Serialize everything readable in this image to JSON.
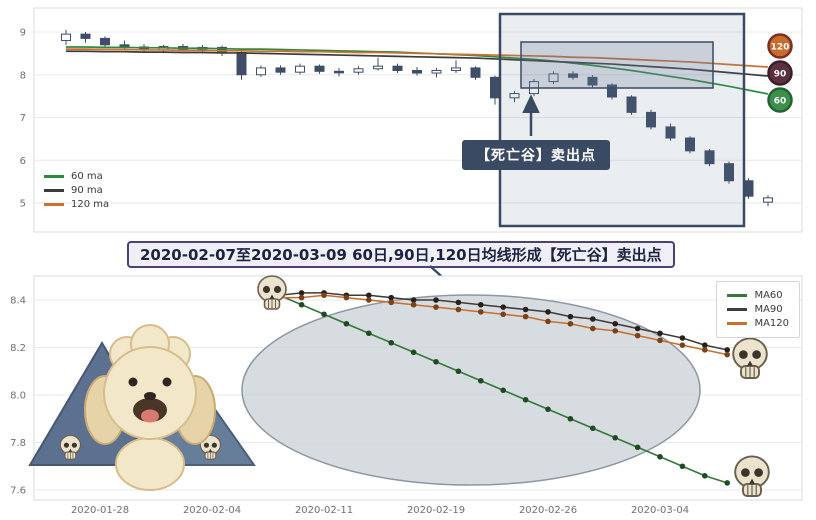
{
  "figure": {
    "bg": "#ffffff",
    "panel_border": "#d7dbe1",
    "grid_color": "#e6e9ed",
    "axis_label_color": "#707070",
    "accent_navy": "#3b4a63",
    "ellipse_fill": "#cdd3da",
    "ellipse_stroke": "#8d97a2"
  },
  "top_panel": {
    "annotation_badge": {
      "text": "【死亡谷】卖出点"
    },
    "ma_badges": [
      {
        "label": "120",
        "bg": "#c96b2c",
        "border": "#7a2f1f"
      },
      {
        "label": "90",
        "bg": "#5d3040",
        "border": "#3a1f2a"
      },
      {
        "label": "60",
        "bg": "#3d8f4c",
        "border": "#236330"
      }
    ]
  },
  "between": {
    "annotation_title": "2020-02-07至2020-03-09 60日,90日,120日均线形成【死亡谷】卖出点"
  },
  "chart_data": [
    {
      "type": "candlestick",
      "panel": "top",
      "ylim": [
        4.6,
        9.4
      ],
      "y_ticks": [
        9,
        8,
        7,
        6,
        5
      ],
      "candle_up_color": "#ffffff",
      "candle_down_color": "#3f4d68",
      "candle_outline": "#3f4d68",
      "dates": [
        "2020-01-21",
        "2020-01-22",
        "2020-01-23",
        "2020-01-24",
        "2020-01-27",
        "2020-01-28",
        "2020-01-29",
        "2020-01-30",
        "2020-01-31",
        "2020-02-03",
        "2020-02-04",
        "2020-02-05",
        "2020-02-06",
        "2020-02-07",
        "2020-02-10",
        "2020-02-11",
        "2020-02-12",
        "2020-02-13",
        "2020-02-14",
        "2020-02-18",
        "2020-02-19",
        "2020-02-20",
        "2020-02-21",
        "2020-02-24",
        "2020-02-25",
        "2020-02-26",
        "2020-02-27",
        "2020-02-28",
        "2020-03-02",
        "2020-03-03",
        "2020-03-04",
        "2020-03-05",
        "2020-03-06",
        "2020-03-09",
        "2020-03-10",
        "2020-03-11",
        "2020-03-12"
      ],
      "open": [
        8.8,
        8.95,
        8.85,
        8.7,
        8.65,
        8.58,
        8.66,
        8.6,
        8.64,
        8.52,
        8.0,
        8.16,
        8.06,
        8.2,
        8.08,
        8.06,
        8.14,
        8.2,
        8.1,
        8.04,
        8.1,
        8.16,
        7.94,
        7.46,
        7.56,
        7.84,
        8.02,
        7.94,
        7.76,
        7.48,
        7.12,
        6.78,
        6.52,
        6.22,
        5.92,
        5.52,
        5.02
      ],
      "high": [
        9.05,
        9.0,
        8.9,
        8.8,
        8.72,
        8.7,
        8.72,
        8.7,
        8.68,
        8.58,
        8.22,
        8.22,
        8.26,
        8.24,
        8.16,
        8.2,
        8.4,
        8.26,
        8.18,
        8.16,
        8.34,
        8.2,
        7.98,
        7.62,
        7.9,
        8.08,
        8.08,
        7.99,
        7.8,
        7.52,
        7.18,
        6.86,
        6.56,
        6.26,
        5.97,
        5.58,
        5.18
      ],
      "low": [
        8.7,
        8.75,
        8.65,
        8.6,
        8.52,
        8.52,
        8.56,
        8.5,
        8.44,
        7.88,
        7.95,
        8.0,
        8.01,
        8.02,
        7.96,
        8.0,
        8.1,
        8.04,
        7.98,
        7.94,
        8.04,
        7.88,
        7.3,
        7.36,
        7.5,
        7.78,
        7.88,
        7.7,
        7.42,
        7.06,
        6.72,
        6.46,
        6.16,
        5.86,
        5.45,
        5.1,
        4.92
      ],
      "close": [
        8.95,
        8.85,
        8.7,
        8.65,
        8.58,
        8.66,
        8.6,
        8.64,
        8.52,
        8.0,
        8.16,
        8.06,
        8.2,
        8.08,
        8.06,
        8.14,
        8.2,
        8.1,
        8.04,
        8.1,
        8.16,
        7.94,
        7.46,
        7.56,
        7.84,
        8.02,
        7.94,
        7.76,
        7.48,
        7.12,
        6.78,
        6.52,
        6.22,
        5.92,
        5.52,
        5.16,
        5.12
      ],
      "series": [
        {
          "name": "60 ma",
          "color": "#2e8b3d",
          "values": [
            8.65,
            8.65,
            8.64,
            8.64,
            8.63,
            8.63,
            8.62,
            8.62,
            8.61,
            8.6,
            8.6,
            8.59,
            8.58,
            8.57,
            8.56,
            8.55,
            8.54,
            8.53,
            8.51,
            8.49,
            8.47,
            8.45,
            8.42,
            8.39,
            8.36,
            8.32,
            8.27,
            8.22,
            8.16,
            8.1,
            8.03,
            7.96,
            7.89,
            7.81,
            7.73,
            7.64,
            7.55
          ]
        },
        {
          "name": "90 ma",
          "color": "#3b3b3b",
          "values": [
            8.55,
            8.55,
            8.54,
            8.54,
            8.53,
            8.53,
            8.52,
            8.52,
            8.51,
            8.51,
            8.5,
            8.49,
            8.48,
            8.47,
            8.46,
            8.45,
            8.44,
            8.43,
            8.42,
            8.41,
            8.4,
            8.39,
            8.37,
            8.35,
            8.33,
            8.31,
            8.29,
            8.27,
            8.25,
            8.22,
            8.19,
            8.16,
            8.13,
            8.09,
            8.05,
            8.01,
            7.97
          ]
        },
        {
          "name": "120 ma",
          "color": "#d0702f",
          "values": [
            8.6,
            8.6,
            8.59,
            8.59,
            8.58,
            8.58,
            8.57,
            8.57,
            8.56,
            8.56,
            8.55,
            8.55,
            8.54,
            8.54,
            8.53,
            8.52,
            8.52,
            8.51,
            8.5,
            8.49,
            8.48,
            8.47,
            8.46,
            8.45,
            8.44,
            8.43,
            8.41,
            8.4,
            8.38,
            8.36,
            8.34,
            8.32,
            8.3,
            8.27,
            8.24,
            8.21,
            8.18
          ]
        }
      ]
    },
    {
      "type": "line",
      "panel": "bottom",
      "ylim": [
        7.55,
        8.5
      ],
      "y_ticks": [
        8.4,
        8.2,
        8.0,
        7.8,
        7.6
      ],
      "x_tick_labels": [
        "2020-01-28",
        "2020-02-04",
        "2020-02-11",
        "2020-02-19",
        "2020-02-26",
        "2020-03-04"
      ],
      "legend_position": "upper right",
      "dates": [
        "2020-02-07",
        "2020-02-10",
        "2020-02-11",
        "2020-02-12",
        "2020-02-13",
        "2020-02-14",
        "2020-02-18",
        "2020-02-19",
        "2020-02-20",
        "2020-02-21",
        "2020-02-24",
        "2020-02-25",
        "2020-02-26",
        "2020-02-27",
        "2020-02-28",
        "2020-03-02",
        "2020-03-03",
        "2020-03-04",
        "2020-03-05",
        "2020-03-06",
        "2020-03-09"
      ],
      "series": [
        {
          "name": "MA60",
          "color": "#35773c",
          "marker_color": "#1f4a24",
          "values": [
            8.42,
            8.38,
            8.34,
            8.3,
            8.26,
            8.22,
            8.18,
            8.14,
            8.1,
            8.06,
            8.02,
            7.98,
            7.94,
            7.9,
            7.86,
            7.82,
            7.78,
            7.74,
            7.7,
            7.66,
            7.63
          ]
        },
        {
          "name": "MA90",
          "color": "#433b35",
          "marker_color": "#26211d",
          "values": [
            8.42,
            8.43,
            8.43,
            8.42,
            8.42,
            8.41,
            8.4,
            8.4,
            8.39,
            8.38,
            8.37,
            8.36,
            8.35,
            8.33,
            8.32,
            8.3,
            8.28,
            8.26,
            8.24,
            8.21,
            8.19
          ]
        },
        {
          "name": "MA120",
          "color": "#c86f2e",
          "marker_color": "#7a4218",
          "values": [
            8.41,
            8.41,
            8.42,
            8.41,
            8.4,
            8.39,
            8.38,
            8.37,
            8.36,
            8.35,
            8.34,
            8.33,
            8.31,
            8.3,
            8.28,
            8.27,
            8.25,
            8.23,
            8.21,
            8.19,
            8.17
          ]
        }
      ]
    }
  ]
}
